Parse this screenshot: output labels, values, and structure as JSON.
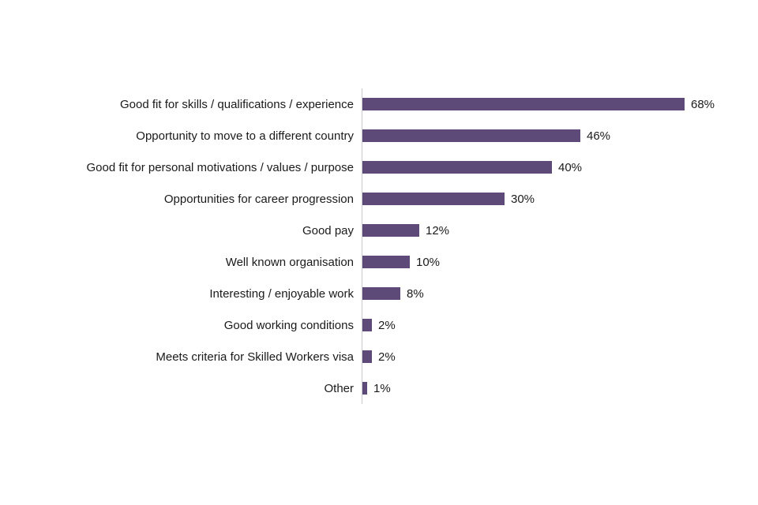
{
  "chart_data": {
    "type": "bar",
    "orientation": "horizontal",
    "title": "",
    "xlabel": "",
    "ylabel": "",
    "categories": [
      "Good fit for skills / qualifications / experience",
      "Opportunity to move to a different country",
      "Good fit for personal motivations / values / purpose",
      "Opportunities for career progression",
      "Good pay",
      "Well known organisation",
      "Interesting / enjoyable work",
      "Good working conditions",
      "Meets criteria for Skilled Workers visa",
      "Other"
    ],
    "values": [
      68,
      46,
      40,
      30,
      12,
      10,
      8,
      2,
      2,
      1
    ],
    "value_labels": [
      "68%",
      "46%",
      "40%",
      "30%",
      "12%",
      "10%",
      "8%",
      "2%",
      "2%",
      "1%"
    ],
    "value_suffix": "%",
    "xlim": [
      0,
      70
    ],
    "grid": false,
    "legend": false,
    "bar_color": "#5d4a79",
    "text_color": "#1a1a1a",
    "axis_line_color": "#c9c9c9"
  }
}
